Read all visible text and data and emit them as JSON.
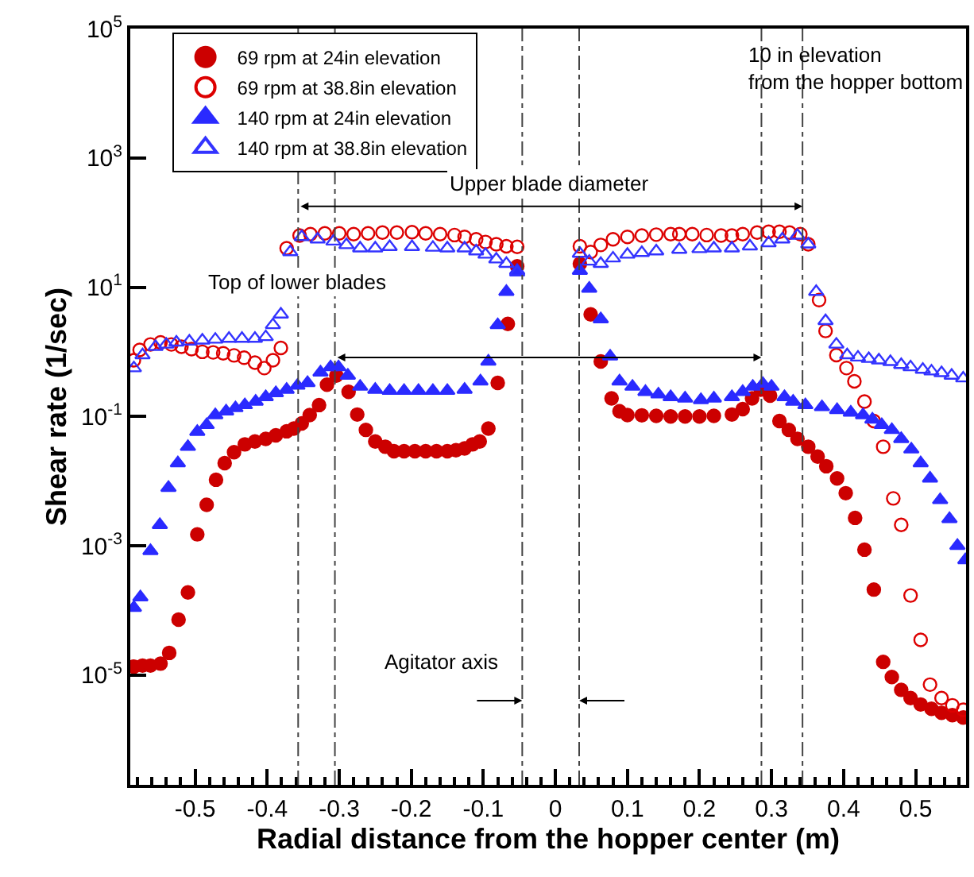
{
  "chart_data": {
    "type": "scatter",
    "xlabel": "Radial distance from the hopper center (m)",
    "ylabel": "Shear rate (1/sec)",
    "log": "y",
    "xlim": [
      -0.59,
      0.57
    ],
    "ylim": [
      2e-07,
      100000
    ],
    "xticks": [
      -0.5,
      -0.4,
      -0.3,
      -0.2,
      -0.1,
      0,
      0.1,
      0.2,
      0.3,
      0.4,
      0.5
    ],
    "yticks": [
      {
        "value": 1e-05,
        "label": "10$^{-5}$"
      },
      {
        "value": 0.001,
        "label": "10$^{-3}$"
      },
      {
        "value": 0.1,
        "label": "10$^{-1}$"
      },
      {
        "value": 10,
        "label": "10$^{1}$"
      },
      {
        "value": 1000,
        "label": "10$^{3}$"
      },
      {
        "value": 100000,
        "label": "10$^{5}$"
      }
    ],
    "legend": "top left",
    "series": [
      {
        "name": "69 rpm at 24in elevation",
        "color": "#cc0000",
        "marker": "circle",
        "x": [
          -0.585,
          -0.573,
          -0.562,
          -0.548,
          -0.536,
          -0.523,
          -0.51,
          -0.497,
          -0.484,
          -0.471,
          -0.459,
          -0.446,
          -0.431,
          -0.417,
          -0.402,
          -0.388,
          -0.373,
          -0.363,
          -0.352,
          -0.341,
          -0.328,
          -0.317,
          -0.304,
          -0.287,
          -0.275,
          -0.263,
          -0.25,
          -0.236,
          -0.224,
          -0.21,
          -0.195,
          -0.18,
          -0.165,
          -0.15,
          -0.138,
          -0.126,
          -0.115,
          -0.105,
          -0.093,
          -0.08,
          -0.066,
          -0.053,
          0.034,
          0.049,
          0.063,
          0.078,
          0.089,
          0.1,
          0.12,
          0.14,
          0.16,
          0.18,
          0.2,
          0.22,
          0.245,
          0.26,
          0.273,
          0.285,
          0.298,
          0.311,
          0.324,
          0.336,
          0.351,
          0.364,
          0.376,
          0.391,
          0.403,
          0.416,
          0.429,
          0.442,
          0.455,
          0.467,
          0.48,
          0.493,
          0.507,
          0.522,
          0.536,
          0.551,
          0.566
        ],
        "values": [
          1.35e-05,
          1.4e-05,
          1.4e-05,
          1.5e-05,
          2.2e-05,
          7.2e-05,
          0.00019,
          0.0015,
          0.0043,
          0.0105,
          0.019,
          0.028,
          0.037,
          0.041,
          0.045,
          0.051,
          0.059,
          0.065,
          0.078,
          0.105,
          0.15,
          0.31,
          0.43,
          0.24,
          0.107,
          0.062,
          0.041,
          0.034,
          0.029,
          0.029,
          0.029,
          0.029,
          0.029,
          0.029,
          0.03,
          0.032,
          0.037,
          0.041,
          0.065,
          0.33,
          2.7,
          21,
          23,
          3.8,
          0.71,
          0.19,
          0.12,
          0.105,
          0.104,
          0.102,
          0.1,
          0.1,
          0.1,
          0.102,
          0.107,
          0.13,
          0.19,
          0.26,
          0.21,
          0.085,
          0.062,
          0.045,
          0.034,
          0.024,
          0.017,
          0.011,
          0.0065,
          0.0027,
          0.00087,
          0.00021,
          1.6e-05,
          9.3e-06,
          5.9e-06,
          4.4e-06,
          3.5e-06,
          3e-06,
          2.6e-06,
          2.4e-06,
          2.2e-06
        ]
      },
      {
        "name": "69 rpm at 38.8in elevation",
        "color": "#dd0000",
        "marker": "circle",
        "x": [
          -0.585,
          -0.577,
          -0.562,
          -0.548,
          -0.533,
          -0.519,
          -0.505,
          -0.49,
          -0.475,
          -0.461,
          -0.446,
          -0.432,
          -0.417,
          -0.404,
          -0.392,
          -0.381,
          -0.373,
          -0.355,
          -0.34,
          -0.32,
          -0.3,
          -0.28,
          -0.26,
          -0.24,
          -0.22,
          -0.199,
          -0.18,
          -0.16,
          -0.14,
          -0.126,
          -0.11,
          -0.097,
          -0.082,
          -0.068,
          -0.053,
          0.034,
          0.049,
          0.063,
          0.08,
          0.1,
          0.12,
          0.14,
          0.16,
          0.172,
          0.19,
          0.21,
          0.23,
          0.245,
          0.26,
          0.28,
          0.296,
          0.311,
          0.325,
          0.34,
          0.351,
          0.366,
          0.375,
          0.39,
          0.404,
          0.415,
          0.429,
          0.442,
          0.455,
          0.469,
          0.48,
          0.493,
          0.507,
          0.52,
          0.536,
          0.551,
          0.566
        ],
        "values": [
          0.74,
          1.07,
          1.3,
          1.4,
          1.3,
          1.2,
          1.1,
          1.0,
          0.98,
          0.95,
          0.88,
          0.81,
          0.68,
          0.56,
          0.74,
          1.15,
          40,
          63,
          66,
          68,
          68,
          66,
          68,
          70,
          70,
          71,
          68,
          66,
          64,
          60,
          55,
          50,
          46,
          43,
          42,
          43,
          35,
          45,
          55,
          60,
          63,
          65,
          66,
          66,
          66,
          64,
          63,
          63,
          66,
          70,
          72,
          72,
          70,
          66,
          46,
          6.3,
          2.1,
          0.89,
          0.56,
          0.35,
          0.17,
          0.085,
          0.034,
          0.0054,
          0.0021,
          0.00017,
          3.5e-05,
          7.1e-06,
          4.4e-06,
          3.4e-06,
          2.9e-06
        ]
      },
      {
        "name": "140 rpm at 24in elevation",
        "color": "#2a2aff",
        "marker": "triangle",
        "x": [
          -0.585,
          -0.576,
          -0.562,
          -0.549,
          -0.537,
          -0.524,
          -0.51,
          -0.497,
          -0.484,
          -0.472,
          -0.457,
          -0.444,
          -0.431,
          -0.416,
          -0.402,
          -0.388,
          -0.373,
          -0.358,
          -0.344,
          -0.326,
          -0.312,
          -0.301,
          -0.288,
          -0.271,
          -0.25,
          -0.23,
          -0.21,
          -0.19,
          -0.17,
          -0.15,
          -0.126,
          -0.104,
          -0.093,
          -0.08,
          -0.068,
          -0.053,
          0.034,
          0.047,
          0.063,
          0.076,
          0.089,
          0.107,
          0.125,
          0.143,
          0.16,
          0.18,
          0.202,
          0.22,
          0.245,
          0.26,
          0.274,
          0.288,
          0.3,
          0.318,
          0.33,
          0.347,
          0.37,
          0.391,
          0.41,
          0.427,
          0.44,
          0.453,
          0.467,
          0.48,
          0.494,
          0.507,
          0.52,
          0.534,
          0.547,
          0.558,
          0.569
        ],
        "values": [
          0.00011,
          0.00016,
          0.00083,
          0.0021,
          0.0079,
          0.019,
          0.034,
          0.058,
          0.074,
          0.105,
          0.12,
          0.135,
          0.15,
          0.17,
          0.2,
          0.23,
          0.26,
          0.3,
          0.33,
          0.48,
          0.58,
          0.58,
          0.43,
          0.29,
          0.26,
          0.25,
          0.25,
          0.25,
          0.25,
          0.25,
          0.26,
          0.35,
          0.71,
          2.6,
          8.5,
          18,
          18,
          9.5,
          3.2,
          0.85,
          0.35,
          0.29,
          0.24,
          0.22,
          0.2,
          0.19,
          0.18,
          0.19,
          0.2,
          0.24,
          0.29,
          0.32,
          0.29,
          0.2,
          0.17,
          0.15,
          0.14,
          0.126,
          0.115,
          0.105,
          0.09,
          0.074,
          0.062,
          0.045,
          0.031,
          0.019,
          0.011,
          0.0051,
          0.0026,
          0.001,
          0.0006
        ]
      },
      {
        "name": "140 rpm at 38.8in elevation",
        "color": "#3333ff",
        "marker": "triangle",
        "x": [
          -0.585,
          -0.573,
          -0.555,
          -0.54,
          -0.526,
          -0.508,
          -0.49,
          -0.472,
          -0.453,
          -0.435,
          -0.417,
          -0.402,
          -0.392,
          -0.381,
          -0.368,
          -0.352,
          -0.33,
          -0.308,
          -0.29,
          -0.271,
          -0.25,
          -0.23,
          -0.199,
          -0.17,
          -0.15,
          -0.126,
          -0.11,
          -0.097,
          -0.082,
          -0.068,
          -0.053,
          0.034,
          0.047,
          0.063,
          0.08,
          0.1,
          0.12,
          0.14,
          0.172,
          0.2,
          0.22,
          0.245,
          0.27,
          0.296,
          0.315,
          0.336,
          0.351,
          0.362,
          0.375,
          0.39,
          0.405,
          0.42,
          0.435,
          0.449,
          0.465,
          0.48,
          0.493,
          0.51,
          0.522,
          0.536,
          0.55,
          0.566
        ],
        "values": [
          0.56,
          0.89,
          1.2,
          1.3,
          1.4,
          1.45,
          1.5,
          1.55,
          1.6,
          1.6,
          1.6,
          1.7,
          2.6,
          3.8,
          35,
          60,
          55,
          51,
          45,
          40,
          40,
          42,
          42,
          41,
          40,
          40,
          36,
          32,
          27,
          23,
          17,
          33,
          25,
          23,
          28,
          32,
          34,
          36,
          38,
          39,
          40,
          40,
          43,
          48,
          55,
          63,
          46,
          8.5,
          3.0,
          1.3,
          0.89,
          0.82,
          0.78,
          0.74,
          0.7,
          0.63,
          0.58,
          0.53,
          0.5,
          0.47,
          0.43,
          0.39
        ]
      }
    ],
    "ref_lines": [
      {
        "axis": "x",
        "value": -0.357,
        "color": "#444444",
        "line_style": "dashdot"
      },
      {
        "axis": "x",
        "value": 0.343,
        "color": "#444444",
        "line_style": "dashdot"
      },
      {
        "axis": "x",
        "value": -0.306,
        "color": "#444444",
        "line_style": "dashdot"
      },
      {
        "axis": "x",
        "value": 0.286,
        "color": "#444444",
        "line_style": "dashdot"
      },
      {
        "axis": "x",
        "value": -0.046,
        "color": "#444444",
        "line_style": "dashdot"
      },
      {
        "axis": "x",
        "value": 0.033,
        "color": "#444444",
        "line_style": "dashdot"
      }
    ],
    "annotations": [
      "Upper blade diameter",
      "Top of lower blades",
      {
        "text": "Agitator axis",
        "x": -0.046,
        "y": 4e-06
      },
      "10 in elevation\nfrom the hopper bottom"
    ]
  }
}
